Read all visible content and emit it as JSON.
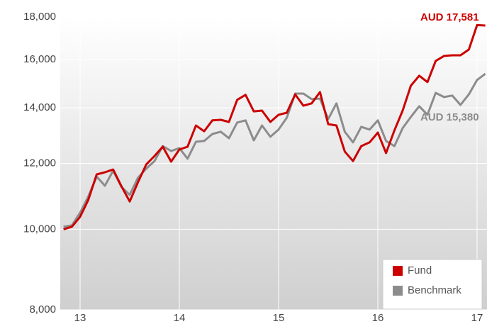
{
  "chart_data": {
    "type": "line",
    "log_scale": true,
    "grid": true,
    "legend": "bottom-right",
    "x": [
      12.833,
      12.917,
      13,
      13.083,
      13.167,
      13.25,
      13.333,
      13.417,
      13.5,
      13.583,
      13.667,
      13.75,
      13.833,
      13.917,
      14,
      14.083,
      14.167,
      14.25,
      14.333,
      14.417,
      14.5,
      14.583,
      14.667,
      14.75,
      14.833,
      14.917,
      15,
      15.083,
      15.167,
      15.25,
      15.333,
      15.417,
      15.5,
      15.583,
      15.667,
      15.75,
      15.833,
      15.917,
      16,
      16.083,
      16.167,
      16.25,
      16.333,
      16.417,
      16.5,
      16.583,
      16.667,
      16.75,
      16.833,
      16.917,
      17,
      17.083
    ],
    "xlim": [
      12.8,
      17.1
    ],
    "xticks": [
      13,
      14,
      15,
      16,
      17
    ],
    "ylim": [
      8000,
      18000
    ],
    "yticks": [
      {
        "value": 8000,
        "label": "8,000"
      },
      {
        "value": 10000,
        "label": "10,000"
      },
      {
        "value": 12000,
        "label": "12,000"
      },
      {
        "value": 14000,
        "label": "14,000"
      },
      {
        "value": 16000,
        "label": "16,000"
      },
      {
        "value": 18000,
        "label": "18,000"
      }
    ],
    "series": [
      {
        "name": "Fund",
        "color": "#cc0000",
        "end_label": "AUD 17,581",
        "values": [
          10000,
          10070,
          10350,
          10850,
          11640,
          11710,
          11800,
          11260,
          10800,
          11390,
          11970,
          12250,
          12570,
          12060,
          12470,
          12570,
          13330,
          13120,
          13520,
          13540,
          13460,
          14310,
          14510,
          13860,
          13890,
          13460,
          13730,
          13810,
          14530,
          14080,
          14170,
          14620,
          13380,
          13330,
          12400,
          12080,
          12590,
          12720,
          13070,
          12350,
          13150,
          13890,
          14880,
          15300,
          15030,
          15940,
          16160,
          16190,
          16190,
          16450,
          17600,
          17581
        ]
      },
      {
        "name": "Benchmark",
        "color": "#8c8c8c",
        "end_label": "AUD 15,380",
        "values": [
          10070,
          10110,
          10470,
          10950,
          11570,
          11280,
          11760,
          11240,
          11000,
          11530,
          11830,
          12080,
          12590,
          12420,
          12520,
          12160,
          12740,
          12770,
          13020,
          13100,
          12870,
          13440,
          13520,
          12790,
          13330,
          12920,
          13180,
          13620,
          14560,
          14560,
          14340,
          14360,
          13570,
          14170,
          13100,
          12720,
          13280,
          13180,
          13520,
          12770,
          12590,
          13230,
          13650,
          14060,
          13730,
          14590,
          14420,
          14480,
          14110,
          14530,
          15120,
          15380
        ]
      }
    ]
  }
}
